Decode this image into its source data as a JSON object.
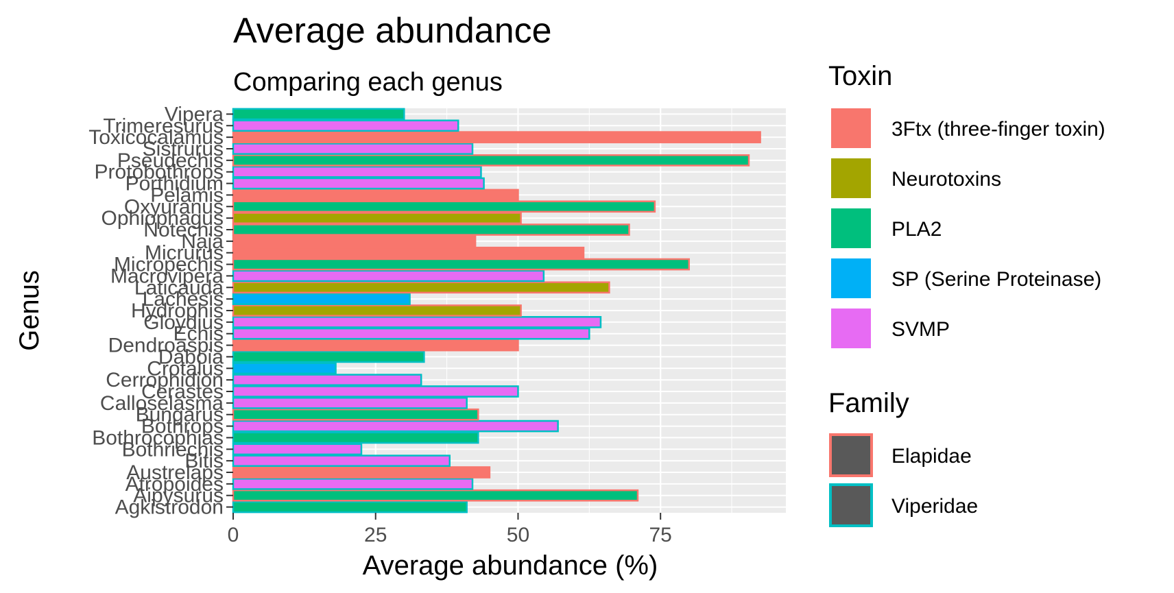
{
  "chart_data": {
    "type": "bar",
    "orientation": "horizontal",
    "title": "Average abundance",
    "subtitle": "Comparing each genus",
    "xlabel": "Average abundance (%)",
    "ylabel": "Genus",
    "xlim": [
      0,
      97
    ],
    "x_ticks": [
      0,
      25,
      50,
      75
    ],
    "grid": true,
    "categories": [
      "Agkistrodon",
      "Aipysurus",
      "Atropoides",
      "Austrelaps",
      "Bitis",
      "Bothriechis",
      "Bothrocophias",
      "Bothrops",
      "Bungarus",
      "Calloselasma",
      "Cerastes",
      "Cerrophidion",
      "Crotalus",
      "Daboia",
      "Dendroaspis",
      "Echis",
      "Gloydius",
      "Hydrophis",
      "Lachesis",
      "Laticauda",
      "Macrovipera",
      "Micropechis",
      "Micrurus",
      "Naja",
      "Notechis",
      "Ophiophagus",
      "Oxyuranus",
      "Pelamis",
      "Porthidium",
      "Protobothrops",
      "Pseudechis",
      "Sistrurus",
      "Toxicocalamus",
      "Trimeresurus",
      "Vipera"
    ],
    "bars": [
      {
        "genus": "Agkistrodon",
        "value": 41,
        "toxin": "PLA2",
        "family": "Viperidae"
      },
      {
        "genus": "Aipysurus",
        "value": 71,
        "toxin": "PLA2",
        "family": "Elapidae"
      },
      {
        "genus": "Atropoides",
        "value": 42,
        "toxin": "SVMP",
        "family": "Viperidae"
      },
      {
        "genus": "Austrelaps",
        "value": 45,
        "toxin": "3Ftx (three-finger toxin)",
        "family": "Elapidae"
      },
      {
        "genus": "Bitis",
        "value": 38,
        "toxin": "SVMP",
        "family": "Viperidae"
      },
      {
        "genus": "Bothriechis",
        "value": 22.5,
        "toxin": "SVMP",
        "family": "Viperidae"
      },
      {
        "genus": "Bothrocophias",
        "value": 43,
        "toxin": "PLA2",
        "family": "Viperidae"
      },
      {
        "genus": "Bothrops",
        "value": 57,
        "toxin": "SVMP",
        "family": "Viperidae"
      },
      {
        "genus": "Bungarus",
        "value": 43,
        "toxin": "PLA2",
        "family": "Elapidae"
      },
      {
        "genus": "Calloselasma",
        "value": 41,
        "toxin": "SVMP",
        "family": "Viperidae"
      },
      {
        "genus": "Cerastes",
        "value": 50,
        "toxin": "SVMP",
        "family": "Viperidae"
      },
      {
        "genus": "Cerrophidion",
        "value": 33,
        "toxin": "SVMP",
        "family": "Viperidae"
      },
      {
        "genus": "Crotalus",
        "value": 18,
        "toxin": "SP (Serine Proteinase)",
        "family": "Viperidae"
      },
      {
        "genus": "Daboia",
        "value": 33.5,
        "toxin": "PLA2",
        "family": "Viperidae"
      },
      {
        "genus": "Dendroaspis",
        "value": 50,
        "toxin": "3Ftx (three-finger toxin)",
        "family": "Elapidae"
      },
      {
        "genus": "Echis",
        "value": 62.5,
        "toxin": "SVMP",
        "family": "Viperidae"
      },
      {
        "genus": "Gloydius",
        "value": 64.5,
        "toxin": "SVMP",
        "family": "Viperidae"
      },
      {
        "genus": "Hydrophis",
        "value": 50.5,
        "toxin": "Neurotoxins",
        "family": "Elapidae"
      },
      {
        "genus": "Lachesis",
        "value": 31,
        "toxin": "SP (Serine Proteinase)",
        "family": "Viperidae"
      },
      {
        "genus": "Laticauda",
        "value": 66,
        "toxin": "Neurotoxins",
        "family": "Elapidae"
      },
      {
        "genus": "Macrovipera",
        "value": 54.5,
        "toxin": "SVMP",
        "family": "Viperidae"
      },
      {
        "genus": "Micropechis",
        "value": 80,
        "toxin": "PLA2",
        "family": "Elapidae"
      },
      {
        "genus": "Micrurus",
        "value": 61.5,
        "toxin": "3Ftx (three-finger toxin)",
        "family": "Elapidae"
      },
      {
        "genus": "Naja",
        "value": 42.5,
        "toxin": "3Ftx (three-finger toxin)",
        "family": "Elapidae"
      },
      {
        "genus": "Notechis",
        "value": 69.5,
        "toxin": "PLA2",
        "family": "Elapidae"
      },
      {
        "genus": "Ophiophagus",
        "value": 50.5,
        "toxin": "Neurotoxins",
        "family": "Elapidae"
      },
      {
        "genus": "Oxyuranus",
        "value": 74,
        "toxin": "PLA2",
        "family": "Elapidae"
      },
      {
        "genus": "Pelamis",
        "value": 50,
        "toxin": "3Ftx (three-finger toxin)",
        "family": "Elapidae"
      },
      {
        "genus": "Porthidium",
        "value": 44,
        "toxin": "SVMP",
        "family": "Viperidae"
      },
      {
        "genus": "Protobothrops",
        "value": 43.5,
        "toxin": "SVMP",
        "family": "Viperidae"
      },
      {
        "genus": "Pseudechis",
        "value": 90.5,
        "toxin": "PLA2",
        "family": "Elapidae"
      },
      {
        "genus": "Sistrurus",
        "value": 42,
        "toxin": "SVMP",
        "family": "Viperidae"
      },
      {
        "genus": "Toxicocalamus",
        "value": 92.5,
        "toxin": "3Ftx (three-finger toxin)",
        "family": "Elapidae"
      },
      {
        "genus": "Trimeresurus",
        "value": 39.5,
        "toxin": "SVMP",
        "family": "Viperidae"
      },
      {
        "genus": "Vipera",
        "value": 30,
        "toxin": "PLA2",
        "family": "Viperidae"
      }
    ],
    "legend_placement": "right",
    "legends": [
      {
        "title": "Toxin",
        "items": [
          {
            "label": "3Ftx (three-finger toxin)",
            "color": "#F8766D"
          },
          {
            "label": "Neurotoxins",
            "color": "#A3A500"
          },
          {
            "label": "PLA2",
            "color": "#00BF7D"
          },
          {
            "label": "SP (Serine Proteinase)",
            "color": "#00B0F6"
          },
          {
            "label": "SVMP",
            "color": "#E76BF3"
          }
        ]
      },
      {
        "title": "Family",
        "items": [
          {
            "label": "Elapidae",
            "color": "#F8766D"
          },
          {
            "label": "Viperidae",
            "color": "#00BFC4"
          }
        ]
      }
    ],
    "colors": {
      "panel_background": "#EBEBEB",
      "gridline": "#FFFFFF",
      "legend_key_fill": "#595959"
    }
  }
}
